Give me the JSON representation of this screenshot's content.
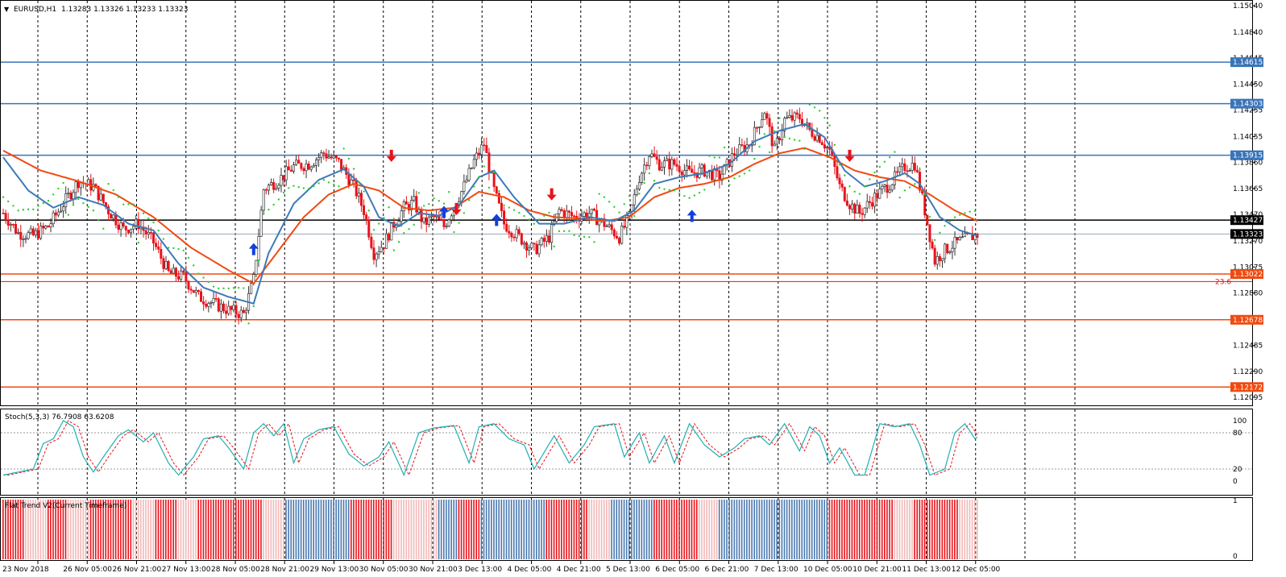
{
  "header": {
    "symbol": "EURUSD,H1",
    "ohlc": "1.13283 1.13326 1.13233 1.13323"
  },
  "colors": {
    "grid": "#000000",
    "axis": "#000000",
    "bull": "#4a78b0",
    "bear": "#e8121a",
    "ma_fast": "#3d7ab8",
    "ma_slow": "#f04a10",
    "sar": "#2ecc2e",
    "level_blue": "#3a74b8",
    "level_red": "#f04a10",
    "stoch_main": "#20b0b0",
    "stoch_signal": "#e8121a"
  },
  "chart_data": {
    "type": "line",
    "title": "EURUSD,H1",
    "price_axis": {
      "min": 1.12095,
      "max": 1.1504,
      "ticks": [
        "1.15040",
        "1.14840",
        "1.14645",
        "1.14450",
        "1.14255",
        "1.14055",
        "1.13860",
        "1.13665",
        "1.13470",
        "1.13270",
        "1.13075",
        "1.12880",
        "1.12680",
        "1.12485",
        "1.12290",
        "1.12095"
      ]
    },
    "x_axis": {
      "labels": [
        "23 Nov 2018",
        "26 Nov 05:00",
        "26 Nov 21:00",
        "27 Nov 13:00",
        "28 Nov 05:00",
        "28 Nov 21:00",
        "29 Nov 13:00",
        "30 Nov 05:00",
        "30 Nov 21:00",
        "3 Dec 13:00",
        "4 Dec 05:00",
        "4 Dec 21:00",
        "5 Dec 13:00",
        "6 Dec 05:00",
        "6 Dec 21:00",
        "7 Dec 13:00",
        "10 Dec 05:00",
        "10 Dec 21:00",
        "11 Dec 13:00",
        "12 Dec 05:00"
      ]
    },
    "levels": [
      {
        "label": "1.14615",
        "value": 1.14615,
        "color": "blue"
      },
      {
        "label": "1.14303",
        "value": 1.14303,
        "color": "blue"
      },
      {
        "label": "1.13915",
        "value": 1.13915,
        "color": "blue"
      },
      {
        "label": "1.13427",
        "value": 1.13427,
        "color": "black"
      },
      {
        "label": "1.13323",
        "value": 1.13323,
        "color": "current"
      },
      {
        "label": "1.13022",
        "value": 1.13022,
        "color": "red"
      },
      {
        "label": "1.12678",
        "value": 1.12678,
        "color": "red"
      },
      {
        "label": "1.12172",
        "value": 1.12172,
        "color": "red"
      }
    ],
    "fib": {
      "label": "23.6",
      "value": 1.12965
    },
    "close_path": [
      [
        0,
        1.1348
      ],
      [
        6,
        1.1333
      ],
      [
        12,
        1.1331
      ],
      [
        18,
        1.1338
      ],
      [
        24,
        1.1355
      ],
      [
        30,
        1.1372
      ],
      [
        36,
        1.1368
      ],
      [
        42,
        1.135
      ],
      [
        48,
        1.1336
      ],
      [
        54,
        1.134
      ],
      [
        60,
        1.1326
      ],
      [
        66,
        1.1303
      ],
      [
        72,
        1.13
      ],
      [
        78,
        1.1285
      ],
      [
        84,
        1.128
      ],
      [
        90,
        1.1275
      ],
      [
        96,
        1.1272
      ],
      [
        100,
        1.1298
      ],
      [
        104,
        1.1366
      ],
      [
        110,
        1.1373
      ],
      [
        116,
        1.1383
      ],
      [
        122,
        1.1385
      ],
      [
        128,
        1.1393
      ],
      [
        134,
        1.1386
      ],
      [
        140,
        1.1368
      ],
      [
        144,
        1.135
      ],
      [
        148,
        1.1318
      ],
      [
        152,
        1.1325
      ],
      [
        156,
        1.134
      ],
      [
        160,
        1.1352
      ],
      [
        164,
        1.1356
      ],
      [
        168,
        1.134
      ],
      [
        172,
        1.1345
      ],
      [
        176,
        1.1338
      ],
      [
        180,
        1.1353
      ],
      [
        184,
        1.1368
      ],
      [
        188,
        1.1387
      ],
      [
        192,
        1.14
      ],
      [
        196,
        1.1365
      ],
      [
        200,
        1.134
      ],
      [
        206,
        1.133
      ],
      [
        212,
        1.132
      ],
      [
        218,
        1.133
      ],
      [
        222,
        1.135
      ],
      [
        228,
        1.1345
      ],
      [
        234,
        1.1348
      ],
      [
        240,
        1.134
      ],
      [
        246,
        1.133
      ],
      [
        250,
        1.1345
      ],
      [
        254,
        1.1375
      ],
      [
        258,
        1.1393
      ],
      [
        262,
        1.1385
      ],
      [
        268,
        1.1385
      ],
      [
        274,
        1.1378
      ],
      [
        280,
        1.138
      ],
      [
        286,
        1.1375
      ],
      [
        292,
        1.1393
      ],
      [
        298,
        1.14
      ],
      [
        304,
        1.1425
      ],
      [
        308,
        1.1395
      ],
      [
        312,
        1.1418
      ],
      [
        318,
        1.142
      ],
      [
        322,
        1.141
      ],
      [
        326,
        1.1405
      ],
      [
        330,
        1.1395
      ],
      [
        334,
        1.1368
      ],
      [
        338,
        1.1355
      ],
      [
        342,
        1.1348
      ],
      [
        348,
        1.136
      ],
      [
        354,
        1.137
      ],
      [
        360,
        1.1383
      ],
      [
        364,
        1.1385
      ],
      [
        368,
        1.135
      ],
      [
        372,
        1.1312
      ],
      [
        376,
        1.132
      ],
      [
        380,
        1.1325
      ],
      [
        386,
        1.133
      ],
      [
        389,
        1.1332
      ]
    ],
    "ma_fast": [
      [
        0,
        1.139
      ],
      [
        10,
        1.1365
      ],
      [
        20,
        1.1352
      ],
      [
        30,
        1.136
      ],
      [
        40,
        1.1354
      ],
      [
        50,
        1.134
      ],
      [
        60,
        1.1335
      ],
      [
        70,
        1.131
      ],
      [
        80,
        1.1292
      ],
      [
        90,
        1.1285
      ],
      [
        100,
        1.128
      ],
      [
        106,
        1.1318
      ],
      [
        116,
        1.1355
      ],
      [
        126,
        1.1373
      ],
      [
        136,
        1.1381
      ],
      [
        144,
        1.1368
      ],
      [
        150,
        1.1345
      ],
      [
        158,
        1.1338
      ],
      [
        166,
        1.1348
      ],
      [
        174,
        1.1346
      ],
      [
        182,
        1.1354
      ],
      [
        190,
        1.1375
      ],
      [
        196,
        1.138
      ],
      [
        204,
        1.136
      ],
      [
        214,
        1.134
      ],
      [
        224,
        1.134
      ],
      [
        234,
        1.1345
      ],
      [
        244,
        1.1342
      ],
      [
        252,
        1.135
      ],
      [
        260,
        1.137
      ],
      [
        270,
        1.1375
      ],
      [
        280,
        1.1378
      ],
      [
        290,
        1.1385
      ],
      [
        300,
        1.1402
      ],
      [
        310,
        1.141
      ],
      [
        320,
        1.1415
      ],
      [
        328,
        1.1405
      ],
      [
        336,
        1.138
      ],
      [
        344,
        1.1368
      ],
      [
        352,
        1.1372
      ],
      [
        360,
        1.1378
      ],
      [
        366,
        1.137
      ],
      [
        374,
        1.1345
      ],
      [
        382,
        1.1335
      ],
      [
        389,
        1.1331
      ]
    ],
    "ma_slow": [
      [
        0,
        1.1395
      ],
      [
        15,
        1.138
      ],
      [
        30,
        1.1372
      ],
      [
        45,
        1.1362
      ],
      [
        60,
        1.1345
      ],
      [
        75,
        1.1322
      ],
      [
        90,
        1.1305
      ],
      [
        100,
        1.1295
      ],
      [
        110,
        1.132
      ],
      [
        120,
        1.1345
      ],
      [
        130,
        1.1362
      ],
      [
        140,
        1.137
      ],
      [
        150,
        1.1365
      ],
      [
        160,
        1.1352
      ],
      [
        170,
        1.135
      ],
      [
        180,
        1.1352
      ],
      [
        190,
        1.1364
      ],
      [
        200,
        1.136
      ],
      [
        210,
        1.135
      ],
      [
        220,
        1.1345
      ],
      [
        230,
        1.1344
      ],
      [
        240,
        1.1342
      ],
      [
        250,
        1.1345
      ],
      [
        260,
        1.136
      ],
      [
        270,
        1.1367
      ],
      [
        280,
        1.137
      ],
      [
        290,
        1.1375
      ],
      [
        300,
        1.1385
      ],
      [
        310,
        1.1393
      ],
      [
        320,
        1.1397
      ],
      [
        330,
        1.139
      ],
      [
        340,
        1.138
      ],
      [
        350,
        1.1375
      ],
      [
        360,
        1.1372
      ],
      [
        370,
        1.1362
      ],
      [
        380,
        1.135
      ],
      [
        389,
        1.1342
      ]
    ],
    "signals": [
      {
        "type": "up",
        "i": 100,
        "price": 1.132
      },
      {
        "type": "down",
        "i": 155,
        "price": 1.1392
      },
      {
        "type": "up",
        "i": 176,
        "price": 1.1348
      },
      {
        "type": "down",
        "i": 181,
        "price": 1.1352
      },
      {
        "type": "up",
        "i": 197,
        "price": 1.1342
      },
      {
        "type": "down",
        "i": 219,
        "price": 1.1363
      },
      {
        "type": "up",
        "i": 275,
        "price": 1.1345
      },
      {
        "type": "down",
        "i": 338,
        "price": 1.1392
      }
    ],
    "stoch": {
      "label": "Stoch(5,3,3) 76.7908 63.6208",
      "levels": [
        "100",
        "80",
        "20",
        "0"
      ],
      "min": 0,
      "max": 100,
      "path": [
        [
          0,
          10
        ],
        [
          6,
          15
        ],
        [
          12,
          20
        ],
        [
          16,
          62
        ],
        [
          20,
          70
        ],
        [
          24,
          100
        ],
        [
          28,
          90
        ],
        [
          32,
          40
        ],
        [
          36,
          15
        ],
        [
          40,
          40
        ],
        [
          46,
          75
        ],
        [
          50,
          85
        ],
        [
          56,
          65
        ],
        [
          60,
          80
        ],
        [
          66,
          30
        ],
        [
          70,
          10
        ],
        [
          76,
          40
        ],
        [
          80,
          70
        ],
        [
          86,
          75
        ],
        [
          90,
          55
        ],
        [
          96,
          20
        ],
        [
          100,
          80
        ],
        [
          104,
          95
        ],
        [
          108,
          75
        ],
        [
          112,
          95
        ],
        [
          116,
          30
        ],
        [
          120,
          70
        ],
        [
          126,
          85
        ],
        [
          132,
          90
        ],
        [
          138,
          45
        ],
        [
          144,
          25
        ],
        [
          150,
          40
        ],
        [
          154,
          65
        ],
        [
          160,
          10
        ],
        [
          166,
          80
        ],
        [
          172,
          88
        ],
        [
          180,
          92
        ],
        [
          186,
          30
        ],
        [
          190,
          90
        ],
        [
          196,
          95
        ],
        [
          202,
          70
        ],
        [
          208,
          60
        ],
        [
          212,
          20
        ],
        [
          220,
          75
        ],
        [
          226,
          30
        ],
        [
          232,
          60
        ],
        [
          236,
          90
        ],
        [
          244,
          95
        ],
        [
          248,
          40
        ],
        [
          254,
          80
        ],
        [
          258,
          30
        ],
        [
          264,
          75
        ],
        [
          268,
          30
        ],
        [
          274,
          95
        ],
        [
          280,
          60
        ],
        [
          286,
          40
        ],
        [
          292,
          55
        ],
        [
          296,
          70
        ],
        [
          302,
          75
        ],
        [
          306,
          60
        ],
        [
          312,
          95
        ],
        [
          318,
          50
        ],
        [
          322,
          90
        ],
        [
          326,
          75
        ],
        [
          330,
          30
        ],
        [
          334,
          55
        ],
        [
          340,
          10
        ],
        [
          344,
          10
        ],
        [
          350,
          95
        ],
        [
          356,
          90
        ],
        [
          362,
          95
        ],
        [
          366,
          60
        ],
        [
          370,
          10
        ],
        [
          376,
          20
        ],
        [
          380,
          80
        ],
        [
          384,
          95
        ],
        [
          388,
          70
        ],
        [
          390,
          76
        ]
      ]
    },
    "flat_trend": {
      "label": "Flat Trend V2(Current Timeframe)",
      "ticks": [
        "1",
        "0"
      ],
      "states": [
        "R",
        "P",
        "R",
        "P",
        "R",
        "R",
        "P",
        "R",
        "P",
        "R",
        "R",
        "R",
        "P",
        "B",
        "B",
        "B",
        "R",
        "R",
        "P",
        "P",
        "B",
        "R",
        "B",
        "B",
        "B",
        "R",
        "R",
        "P",
        "B",
        "B",
        "R",
        "R",
        "P",
        "B",
        "B",
        "B",
        "B",
        "B",
        "R",
        "R",
        "R",
        "P",
        "R",
        "R",
        "P"
      ]
    }
  }
}
